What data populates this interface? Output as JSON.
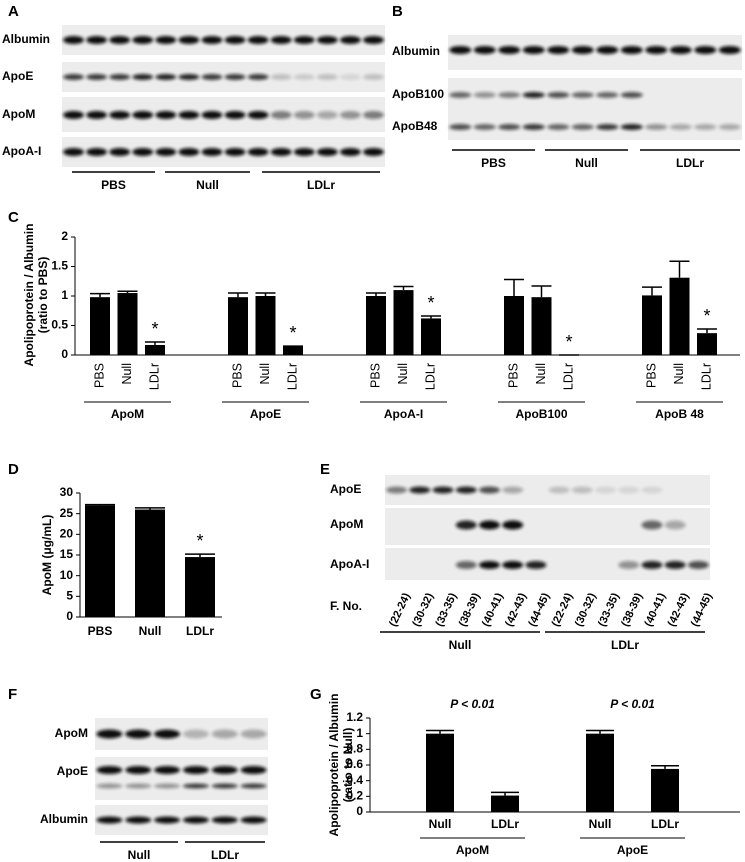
{
  "blots": [
    {
      "label": "A",
      "rows": [
        "Albumin",
        "ApoE",
        "ApoM",
        "ApoA-I"
      ],
      "groups": [
        "PBS",
        "Null",
        "LDLr"
      ]
    },
    {
      "label": "B",
      "rows": [
        "Albumin",
        "ApoB100",
        "ApoB48"
      ],
      "groups": [
        "PBS",
        "Null",
        "LDLr"
      ]
    },
    {
      "label": "E",
      "rows": [
        "ApoE",
        "ApoM",
        "ApoA-I"
      ],
      "fraction_label": "F. No.",
      "fractions": [
        "(22-24)",
        "(30-32)",
        "(33-35)",
        "(38-39)",
        "(40-41)",
        "(42-43)",
        "(44-45)"
      ],
      "groups": [
        "Null",
        "LDLr"
      ]
    },
    {
      "label": "F",
      "rows": [
        "ApoM",
        "ApoE",
        "Albumin"
      ],
      "groups": [
        "Null",
        "LDLr"
      ]
    }
  ],
  "chart_data": [
    {
      "type": "bar",
      "label": "C",
      "ylabel": [
        "Apolipoprotein / Albumin",
        "(ratio to PBS)"
      ],
      "categories": [
        "ApoM",
        "ApoE",
        "ApoA-I",
        "ApoB100",
        "ApoB 48"
      ],
      "series": [
        {
          "name": "PBS",
          "color": "#000000",
          "values": [
            0.98,
            0.98,
            1.0,
            1.0,
            1.01
          ],
          "errors": [
            0.06,
            0.07,
            0.05,
            0.28,
            0.14
          ]
        },
        {
          "name": "Null",
          "color": "#000000",
          "values": [
            1.05,
            1.0,
            1.1,
            0.98,
            1.31
          ],
          "errors": [
            0.03,
            0.05,
            0.06,
            0.19,
            0.28
          ]
        },
        {
          "name": "LDLr",
          "color": "#000000",
          "values": [
            0.17,
            0.15,
            0.62,
            0,
            0.37
          ],
          "errors": [
            0.05,
            0,
            0.04,
            0,
            0.07
          ],
          "annotations": [
            "*",
            "*",
            "*",
            "*",
            "*"
          ]
        }
      ],
      "ylim": [
        0,
        2
      ],
      "yticks": [
        0,
        0.5,
        1,
        1.5,
        2
      ]
    },
    {
      "type": "bar",
      "label": "D",
      "ylabel": "ApoM (μg/mL)",
      "categories": [
        "PBS",
        "Null",
        "LDLr"
      ],
      "values": [
        27,
        26,
        14.5
      ],
      "errors": [
        0.2,
        0.4,
        0.7
      ],
      "annotations": [
        null,
        null,
        "*"
      ],
      "color": "#000000",
      "ylim": [
        0,
        30
      ],
      "yticks": [
        0,
        5,
        10,
        15,
        20,
        25,
        30
      ]
    },
    {
      "type": "bar",
      "label": "G",
      "ylabel": [
        "Apolipoprotein / Albumin",
        "(ratio to Null)"
      ],
      "categories": [
        "ApoM",
        "ApoE"
      ],
      "series": [
        {
          "name": "Null",
          "color": "#000000",
          "values": [
            1.0,
            1.0
          ],
          "errors": [
            0.04,
            0.04
          ]
        },
        {
          "name": "LDLr",
          "color": "#000000",
          "values": [
            0.21,
            0.55
          ],
          "errors": [
            0.04,
            0.04
          ]
        }
      ],
      "annotations": [
        "P < 0.01",
        "P < 0.01"
      ],
      "ylim": [
        0,
        1.2
      ],
      "yticks": [
        0,
        0.2,
        0.4,
        0.6,
        0.8,
        1,
        1.2
      ]
    }
  ]
}
